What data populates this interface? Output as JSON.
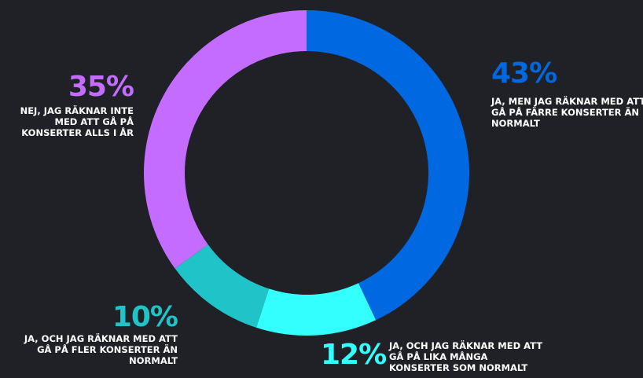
{
  "chart_data": {
    "type": "pie",
    "donut": true,
    "categories": [
      "JA, MEN JAG RÄKNAR MED ATT GÅ PÅ FÄRRE KONSERTER ÄN NORMALT",
      "JA, OCH JAG RÄKNAR MED ATT GÅ PÅ LIKA MÅNGA KONSERTER SOM NORMALT",
      "JA, OCH JAG RÄKNAR MED ATT GÅ PÅ FLER KONSERTER ÄN NORMALT",
      "NEJ, JAG RÄKNAR INTE MED ATT GÅ PÅ KONSERTER ALLS I ÅR"
    ],
    "values": [
      43,
      12,
      10,
      35
    ],
    "value_labels": [
      "43%",
      "12%",
      "10%",
      "35%"
    ],
    "colors": [
      "#0068e0",
      "#33ffff",
      "#20c4c8",
      "#c46cff"
    ]
  }
}
